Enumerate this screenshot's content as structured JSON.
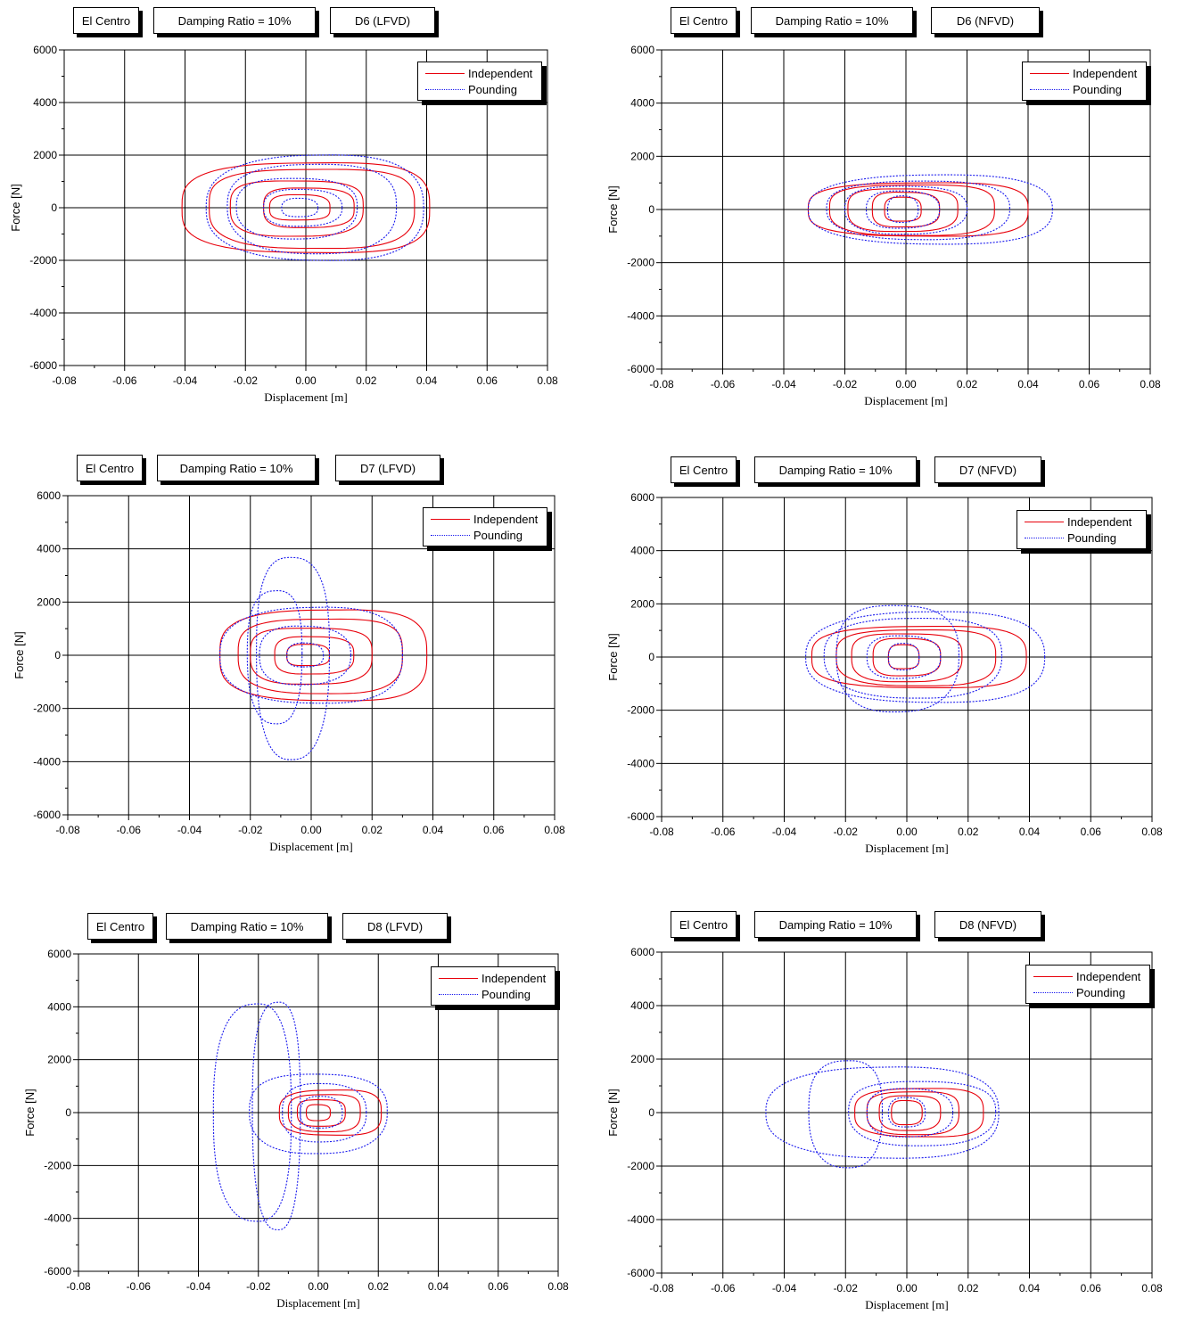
{
  "legend": {
    "independent": "Independent",
    "pounding": "Pounding"
  },
  "colors": {
    "independent": "#e8000b",
    "pounding": "#1a1aee"
  },
  "chart_data": [
    {
      "type": "scatter",
      "record": "El Centro",
      "damping": "Damping Ratio = 10%",
      "damper": "D6 (LFVD)",
      "xlabel": "Displacement [m]",
      "ylabel": "Force [N]",
      "xlim": [
        -0.08,
        0.08
      ],
      "ylim": [
        -6000,
        6000
      ],
      "xticks": [
        "-0.08",
        "-0.06",
        "-0.04",
        "-0.02",
        "0.00",
        "0.02",
        "0.04",
        "0.06",
        "0.08"
      ],
      "yticks": [
        "6000",
        "4000",
        "2000",
        "0",
        "-2000",
        "-4000",
        "-6000"
      ],
      "grid": true,
      "legend_position": "top-right",
      "series": [
        {
          "name": "Independent",
          "style": "solid",
          "loops": [
            {
              "x0": 0.0,
              "amp": 0.041,
              "famp": 1700
            },
            {
              "x0": 0.002,
              "amp": 0.034,
              "famp": 1500
            },
            {
              "x0": -0.003,
              "amp": 0.022,
              "famp": 1050
            },
            {
              "x0": 0.001,
              "amp": 0.015,
              "famp": 750
            },
            {
              "x0": -0.002,
              "amp": 0.01,
              "famp": 480
            }
          ]
        },
        {
          "name": "Pounding",
          "style": "dotted",
          "loops": [
            {
              "x0": 0.003,
              "amp": 0.036,
              "famp": 2000
            },
            {
              "x0": 0.002,
              "amp": 0.028,
              "famp": 1700
            },
            {
              "x0": -0.003,
              "amp": 0.02,
              "famp": 1150
            },
            {
              "x0": -0.001,
              "amp": 0.013,
              "famp": 700
            },
            {
              "x0": -0.002,
              "amp": 0.006,
              "famp": 350
            }
          ]
        }
      ]
    },
    {
      "type": "scatter",
      "record": "El Centro",
      "damping": "Damping Ratio = 10%",
      "damper": "D6 (NFVD)",
      "xlabel": "Displacement [m]",
      "ylabel": "Force [N]",
      "xlim": [
        -0.08,
        0.08
      ],
      "ylim": [
        -6000,
        6000
      ],
      "xticks": [
        "-0.08",
        "-0.06",
        "-0.04",
        "-0.02",
        "0.00",
        "0.02",
        "0.04",
        "0.06",
        "0.08"
      ],
      "yticks": [
        "6000",
        "4000",
        "2000",
        "0",
        "-2000",
        "-4000",
        "-6000"
      ],
      "grid": true,
      "legend_position": "top-right",
      "series": [
        {
          "name": "Independent",
          "style": "solid",
          "loops": [
            {
              "x0": 0.004,
              "amp": 0.036,
              "famp": 1000
            },
            {
              "x0": 0.002,
              "amp": 0.027,
              "famp": 950
            },
            {
              "x0": -0.001,
              "amp": 0.018,
              "famp": 800
            },
            {
              "x0": 0.0,
              "amp": 0.011,
              "famp": 650
            },
            {
              "x0": -0.001,
              "amp": 0.006,
              "famp": 450
            }
          ]
        },
        {
          "name": "Pounding",
          "style": "dotted",
          "loops": [
            {
              "x0": 0.008,
              "amp": 0.04,
              "famp": 1300
            },
            {
              "x0": 0.004,
              "amp": 0.03,
              "famp": 1100
            },
            {
              "x0": 0.0,
              "amp": 0.02,
              "famp": 900
            },
            {
              "x0": -0.001,
              "amp": 0.012,
              "famp": 700
            },
            {
              "x0": -0.001,
              "amp": 0.005,
              "famp": 500
            }
          ]
        }
      ]
    },
    {
      "type": "scatter",
      "record": "El Centro",
      "damping": "Damping Ratio = 10%",
      "damper": "D7 (LFVD)",
      "xlabel": "Displacement [m]",
      "ylabel": "Force [N]",
      "xlim": [
        -0.08,
        0.08
      ],
      "ylim": [
        -6000,
        6000
      ],
      "xticks": [
        "-0.08",
        "-0.06",
        "-0.04",
        "-0.02",
        "0.00",
        "0.02",
        "0.04",
        "0.06",
        "0.08"
      ],
      "yticks": [
        "6000",
        "4000",
        "2000",
        "0",
        "-2000",
        "-4000",
        "-6000"
      ],
      "grid": true,
      "legend_position": "top-right",
      "series": [
        {
          "name": "Independent",
          "style": "solid",
          "loops": [
            {
              "x0": 0.004,
              "amp": 0.034,
              "famp": 1700
            },
            {
              "x0": 0.003,
              "amp": 0.027,
              "famp": 1400
            },
            {
              "x0": 0.0,
              "amp": 0.02,
              "famp": 1050
            },
            {
              "x0": 0.001,
              "amp": 0.013,
              "famp": 700
            },
            {
              "x0": -0.001,
              "amp": 0.007,
              "famp": 400
            }
          ]
        },
        {
          "name": "Pounding",
          "style": "dotted",
          "loops": [
            {
              "x0": 0.0,
              "amp": 0.03,
              "famp": 1800
            },
            {
              "x0": -0.012,
              "amp": 0.009,
              "famp": 2500
            },
            {
              "x0": -0.006,
              "amp": 0.012,
              "famp": 3800
            },
            {
              "x0": -0.002,
              "amp": 0.015,
              "famp": 1100
            },
            {
              "x0": -0.002,
              "amp": 0.006,
              "famp": 450
            }
          ]
        }
      ]
    },
    {
      "type": "scatter",
      "record": "El Centro",
      "damping": "Damping Ratio = 10%",
      "damper": "D7 (NFVD)",
      "xlabel": "Displacement [m]",
      "ylabel": "Force [N]",
      "xlim": [
        -0.08,
        0.08
      ],
      "ylim": [
        -6000,
        6000
      ],
      "xticks": [
        "-0.08",
        "-0.06",
        "-0.04",
        "-0.02",
        "0.00",
        "0.02",
        "0.04",
        "0.06",
        "0.08"
      ],
      "yticks": [
        "6000",
        "4000",
        "2000",
        "0",
        "-2000",
        "-4000",
        "-6000"
      ],
      "grid": true,
      "legend_position": "top-right",
      "series": [
        {
          "name": "Independent",
          "style": "solid",
          "loops": [
            {
              "x0": 0.004,
              "amp": 0.035,
              "famp": 1150
            },
            {
              "x0": 0.003,
              "amp": 0.026,
              "famp": 1050
            },
            {
              "x0": 0.0,
              "amp": 0.018,
              "famp": 900
            },
            {
              "x0": 0.0,
              "amp": 0.011,
              "famp": 700
            },
            {
              "x0": -0.001,
              "amp": 0.005,
              "famp": 450
            }
          ]
        },
        {
          "name": "Pounding",
          "style": "dotted",
          "loops": [
            {
              "x0": 0.006,
              "amp": 0.039,
              "famp": 1700
            },
            {
              "x0": 0.002,
              "amp": 0.029,
              "famp": 1500
            },
            {
              "x0": -0.003,
              "amp": 0.02,
              "famp": 2000
            },
            {
              "x0": -0.001,
              "amp": 0.012,
              "famp": 800
            },
            {
              "x0": -0.001,
              "amp": 0.005,
              "famp": 500
            }
          ]
        }
      ]
    },
    {
      "type": "scatter",
      "record": "El Centro",
      "damping": "Damping Ratio = 10%",
      "damper": "D8 (LFVD)",
      "xlabel": "Displacement [m]",
      "ylabel": "Force [N]",
      "xlim": [
        -0.08,
        0.08
      ],
      "ylim": [
        -6000,
        6000
      ],
      "xticks": [
        "-0.08",
        "-0.06",
        "-0.04",
        "-0.02",
        "0.00",
        "0.02",
        "0.04",
        "0.06",
        "0.08"
      ],
      "yticks": [
        "6000",
        "4000",
        "2000",
        "0",
        "-2000",
        "-4000",
        "-6000"
      ],
      "grid": true,
      "legend_position": "top-right",
      "series": [
        {
          "name": "Independent",
          "style": "solid",
          "loops": [
            {
              "x0": 0.004,
              "amp": 0.017,
              "famp": 850
            },
            {
              "x0": 0.002,
              "amp": 0.012,
              "famp": 700
            },
            {
              "x0": 0.001,
              "amp": 0.008,
              "famp": 500
            },
            {
              "x0": 0.0,
              "amp": 0.004,
              "famp": 300
            }
          ]
        },
        {
          "name": "Pounding",
          "style": "dotted",
          "loops": [
            {
              "x0": -0.022,
              "amp": 0.013,
              "famp": 4100
            },
            {
              "x0": -0.014,
              "amp": 0.008,
              "famp": 4300
            },
            {
              "x0": 0.0,
              "amp": 0.023,
              "famp": 1500
            },
            {
              "x0": 0.002,
              "amp": 0.014,
              "famp": 1100
            },
            {
              "x0": 0.001,
              "amp": 0.007,
              "famp": 600
            }
          ]
        }
      ]
    },
    {
      "type": "scatter",
      "record": "El Centro",
      "damping": "Damping Ratio = 10%",
      "damper": "D8 (NFVD)",
      "xlabel": "Displacement [m]",
      "ylabel": "Force [N]",
      "xlim": [
        -0.08,
        0.08
      ],
      "ylim": [
        -6000,
        6000
      ],
      "xticks": [
        "-0.08",
        "-0.06",
        "-0.04",
        "-0.02",
        "0.00",
        "0.02",
        "0.04",
        "0.06",
        "0.08"
      ],
      "yticks": [
        "6000",
        "4000",
        "2000",
        "0",
        "-2000",
        "-4000",
        "-6000"
      ],
      "grid": true,
      "legend_position": "top-right",
      "series": [
        {
          "name": "Independent",
          "style": "solid",
          "loops": [
            {
              "x0": 0.004,
              "amp": 0.021,
              "famp": 900
            },
            {
              "x0": 0.002,
              "amp": 0.015,
              "famp": 800
            },
            {
              "x0": 0.001,
              "amp": 0.01,
              "famp": 650
            },
            {
              "x0": 0.0,
              "amp": 0.005,
              "famp": 450
            }
          ]
        },
        {
          "name": "Pounding",
          "style": "dotted",
          "loops": [
            {
              "x0": -0.008,
              "amp": 0.038,
              "famp": 1700
            },
            {
              "x0": -0.02,
              "amp": 0.012,
              "famp": 2000
            },
            {
              "x0": 0.005,
              "amp": 0.024,
              "famp": 1200
            },
            {
              "x0": 0.001,
              "amp": 0.014,
              "famp": 900
            },
            {
              "x0": 0.0,
              "amp": 0.006,
              "famp": 550
            }
          ]
        }
      ]
    }
  ]
}
